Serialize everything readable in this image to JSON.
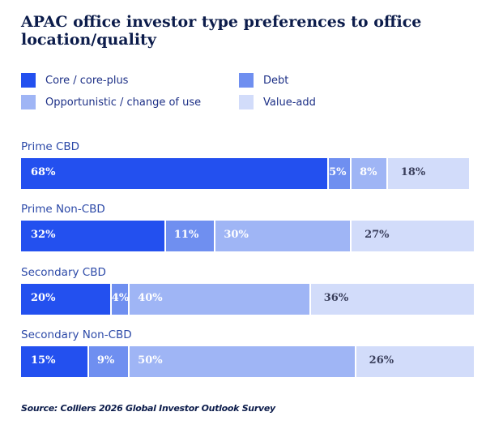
{
  "chart_data": {
    "type": "bar",
    "orientation": "horizontal-stacked",
    "title": "APAC office investor type preferences to office location/quality",
    "categories": [
      "Prime CBD",
      "Prime Non-CBD",
      "Secondary CBD",
      "Secondary Non-CBD"
    ],
    "series": [
      {
        "name": "Core / core-plus",
        "color": "#2350ef",
        "label_color": "#ffffff",
        "values": [
          68,
          32,
          20,
          15
        ]
      },
      {
        "name": "Debt",
        "color": "#6f8ff0",
        "label_color": "#ffffff",
        "values": [
          5,
          11,
          4,
          9
        ]
      },
      {
        "name": "Opportunistic / change of use",
        "color": "#9fb5f5",
        "label_color": "#ffffff",
        "values": [
          8,
          30,
          40,
          50
        ]
      },
      {
        "name": "Value-add",
        "color": "#d2dcfa",
        "label_color": "#3a3f5c",
        "values": [
          18,
          27,
          36,
          26
        ]
      }
    ],
    "value_suffix": "%",
    "xlim": [
      0,
      100
    ],
    "legend": "top",
    "grid": false,
    "source": "Source: Colliers 2026 Global Investor Outlook Survey"
  }
}
